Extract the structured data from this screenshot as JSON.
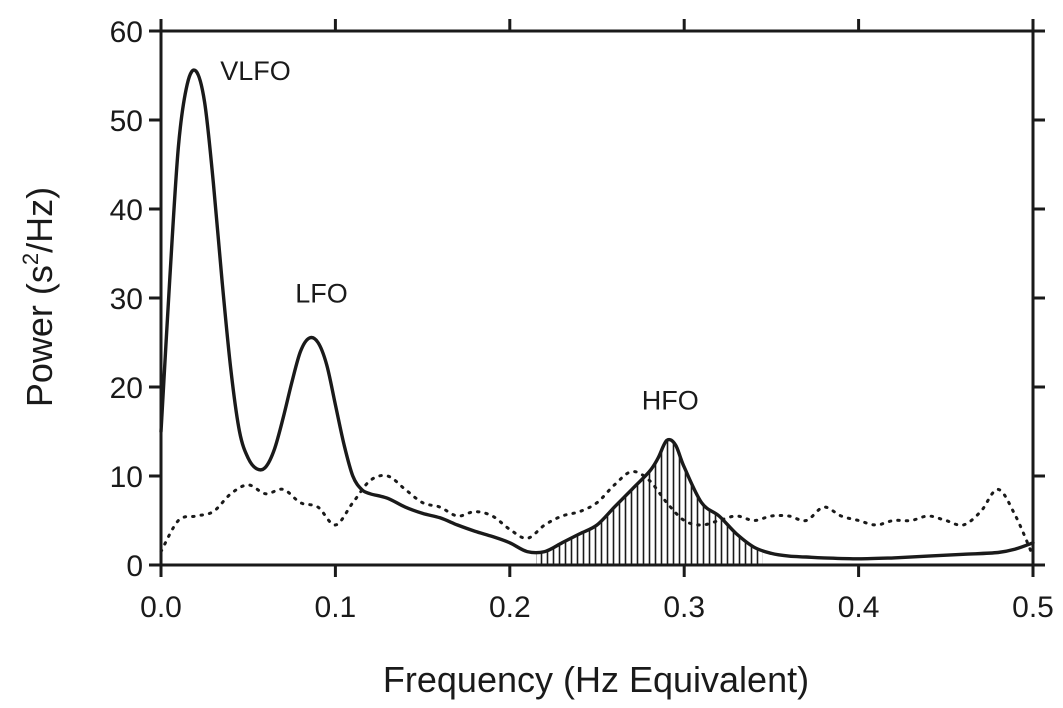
{
  "chart_data": {
    "type": "line",
    "title": "",
    "xlabel": "Frequency (Hz Equivalent)",
    "ylabel": {
      "pre": "Power (s",
      "sup": "2",
      "post": "/Hz)"
    },
    "xlim": [
      0,
      0.5
    ],
    "ylim": [
      0,
      60
    ],
    "xticks": [
      0,
      0.1,
      0.2,
      0.3,
      0.4,
      0.5
    ],
    "xtick_labels": [
      "0.0",
      "0.1",
      "0.2",
      "0.3",
      "0.4",
      "0.5"
    ],
    "yticks": [
      0,
      10,
      20,
      30,
      40,
      50,
      60
    ],
    "ytick_labels": [
      "0",
      "10",
      "20",
      "30",
      "40",
      "50",
      "60"
    ],
    "grid": false,
    "legend": "none",
    "series": [
      {
        "style": "solid",
        "color": "#1a1a1a",
        "x": [
          0.0,
          0.005,
          0.01,
          0.015,
          0.02,
          0.025,
          0.03,
          0.035,
          0.04,
          0.045,
          0.05,
          0.055,
          0.06,
          0.065,
          0.07,
          0.075,
          0.08,
          0.085,
          0.09,
          0.095,
          0.1,
          0.105,
          0.11,
          0.115,
          0.12,
          0.13,
          0.14,
          0.15,
          0.16,
          0.17,
          0.18,
          0.19,
          0.2,
          0.21,
          0.22,
          0.23,
          0.24,
          0.25,
          0.26,
          0.27,
          0.28,
          0.285,
          0.29,
          0.295,
          0.3,
          0.31,
          0.32,
          0.33,
          0.34,
          0.35,
          0.36,
          0.37,
          0.38,
          0.4,
          0.42,
          0.44,
          0.46,
          0.48,
          0.49,
          0.5
        ],
        "y": [
          15,
          32,
          47,
          54,
          55.5,
          52,
          43,
          32,
          22,
          15,
          12,
          10.8,
          11,
          13,
          16.5,
          20.5,
          24,
          25.5,
          25,
          22.5,
          18,
          13.5,
          10,
          8.5,
          8,
          7.5,
          6.5,
          5.8,
          5.3,
          4.5,
          3.8,
          3.2,
          2.5,
          1.5,
          1.5,
          2.5,
          3.5,
          4.5,
          6.5,
          8.5,
          10.5,
          12,
          14,
          13.5,
          11,
          7,
          5.5,
          3.5,
          2,
          1.3,
          1,
          0.9,
          0.8,
          0.7,
          0.8,
          1,
          1.2,
          1.4,
          1.8,
          2.5
        ]
      },
      {
        "style": "dotted",
        "color": "#1a1a1a",
        "x": [
          0.0,
          0.01,
          0.02,
          0.03,
          0.04,
          0.05,
          0.06,
          0.07,
          0.08,
          0.09,
          0.1,
          0.11,
          0.12,
          0.13,
          0.14,
          0.15,
          0.16,
          0.17,
          0.18,
          0.19,
          0.2,
          0.21,
          0.22,
          0.23,
          0.24,
          0.25,
          0.26,
          0.27,
          0.28,
          0.29,
          0.3,
          0.31,
          0.32,
          0.33,
          0.34,
          0.35,
          0.36,
          0.37,
          0.38,
          0.39,
          0.4,
          0.41,
          0.42,
          0.43,
          0.44,
          0.45,
          0.46,
          0.47,
          0.48,
          0.49,
          0.5
        ],
        "y": [
          1.5,
          5,
          5.5,
          6,
          8,
          9,
          8,
          8.5,
          7,
          6.5,
          4.5,
          7,
          9.5,
          10,
          8.5,
          7,
          6.5,
          5.5,
          6,
          5.5,
          4,
          3,
          4.5,
          5.5,
          6,
          7,
          9,
          10.5,
          9.5,
          7,
          5,
          4.5,
          5,
          5.5,
          5,
          5.5,
          5.5,
          5,
          6.5,
          5.5,
          5,
          4.5,
          5,
          5,
          5.5,
          5,
          4.5,
          6,
          8.5,
          5.5,
          1
        ]
      }
    ],
    "shaded_region": {
      "series_index": 0,
      "x_from": 0.215,
      "x_to": 0.345,
      "pattern": "vertical-hatch"
    },
    "annotations": [
      {
        "text": "VLFO",
        "x": 0.034,
        "y": 54.5
      },
      {
        "text": "LFO",
        "x": 0.092,
        "y": 29.5
      },
      {
        "text": "HFO",
        "x": 0.292,
        "y": 17.5
      }
    ]
  }
}
